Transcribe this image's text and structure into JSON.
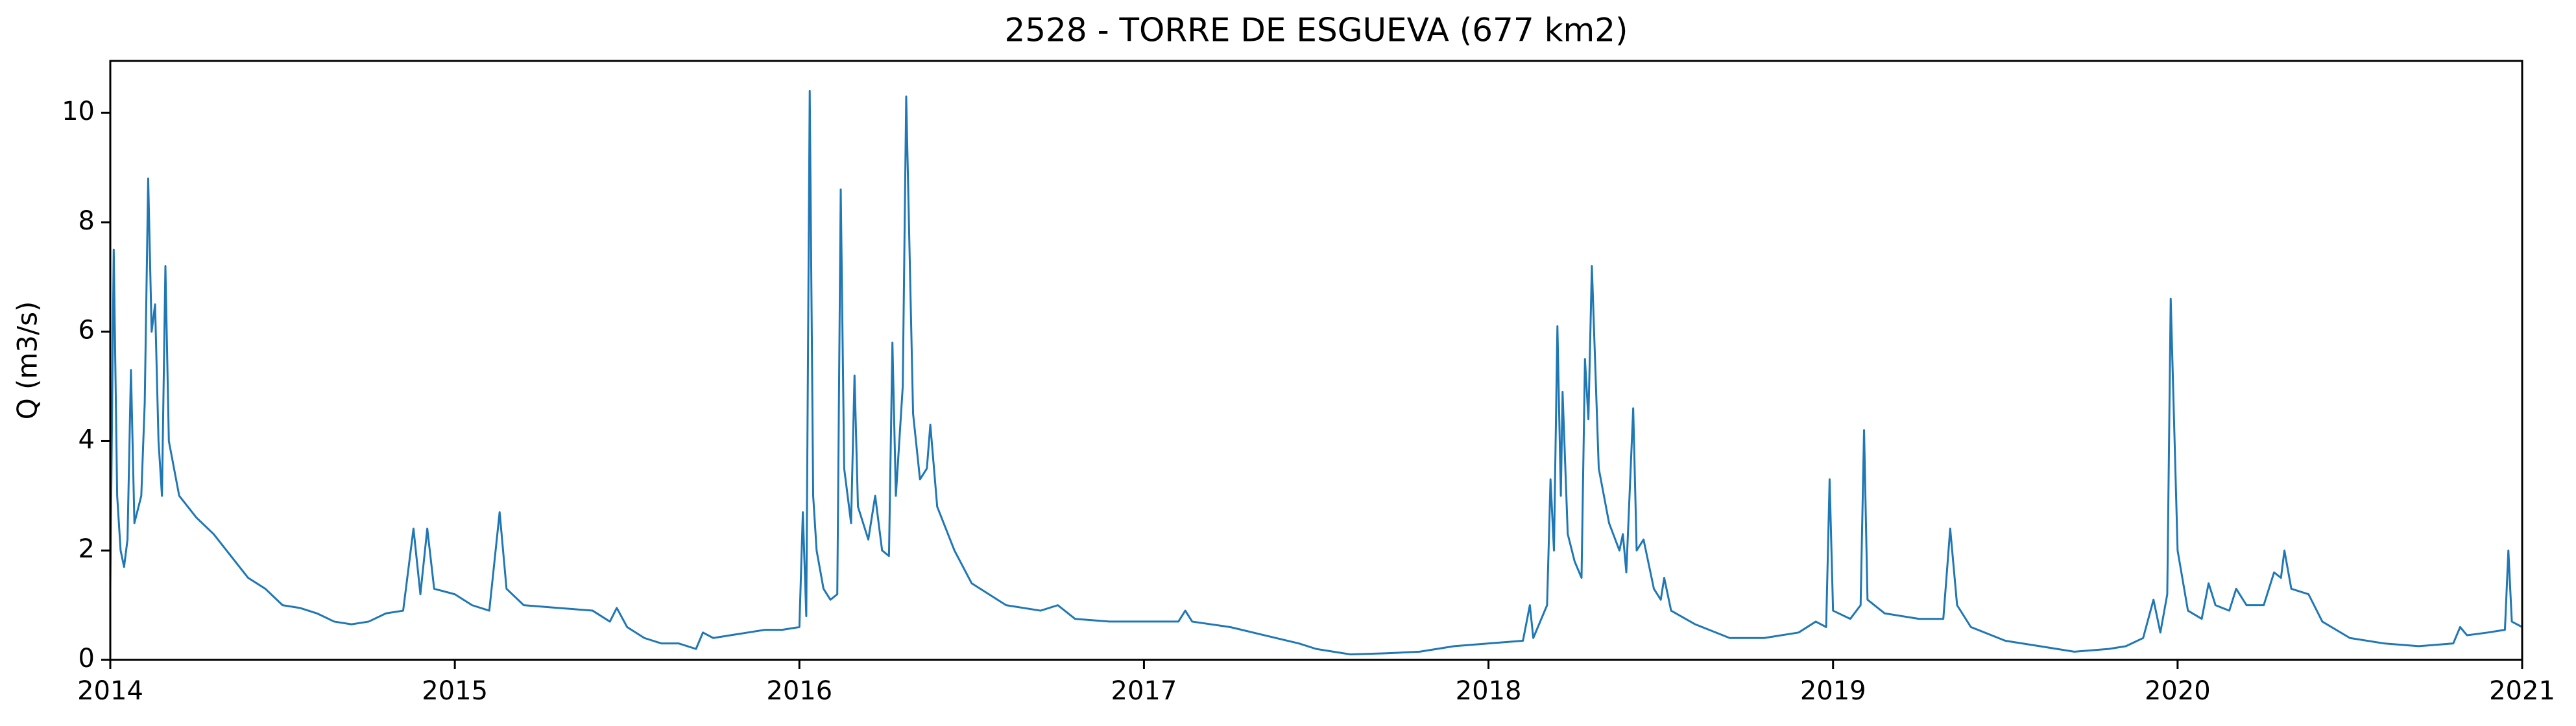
{
  "chart_data": {
    "type": "line",
    "title": "2528 - TORRE DE ESGUEVA (677 km2)",
    "y_label": "Q (m3/s)",
    "x": [
      2014.0,
      2014.01,
      2014.02,
      2014.03,
      2014.04,
      2014.05,
      2014.06,
      2014.07,
      2014.09,
      2014.1,
      2014.11,
      2014.12,
      2014.13,
      2014.14,
      2014.15,
      2014.16,
      2014.17,
      2014.2,
      2014.25,
      2014.3,
      2014.35,
      2014.4,
      2014.45,
      2014.5,
      2014.55,
      2014.6,
      2014.65,
      2014.7,
      2014.75,
      2014.8,
      2014.85,
      2014.88,
      2014.9,
      2014.92,
      2014.94,
      2015.0,
      2015.05,
      2015.1,
      2015.13,
      2015.15,
      2015.2,
      2015.3,
      2015.4,
      2015.45,
      2015.47,
      2015.5,
      2015.55,
      2015.6,
      2015.65,
      2015.7,
      2015.72,
      2015.75,
      2015.8,
      2015.85,
      2015.9,
      2015.95,
      2016.0,
      2016.01,
      2016.02,
      2016.03,
      2016.04,
      2016.05,
      2016.07,
      2016.09,
      2016.11,
      2016.12,
      2016.13,
      2016.15,
      2016.16,
      2016.17,
      2016.2,
      2016.22,
      2016.24,
      2016.26,
      2016.27,
      2016.28,
      2016.3,
      2016.31,
      2016.33,
      2016.35,
      2016.37,
      2016.38,
      2016.4,
      2016.45,
      2016.5,
      2016.55,
      2016.6,
      2016.7,
      2016.75,
      2016.8,
      2016.9,
      2017.0,
      2017.1,
      2017.12,
      2017.14,
      2017.25,
      2017.35,
      2017.45,
      2017.5,
      2017.55,
      2017.6,
      2017.7,
      2017.8,
      2017.9,
      2018.0,
      2018.1,
      2018.12,
      2018.13,
      2018.17,
      2018.18,
      2018.19,
      2018.2,
      2018.21,
      2018.215,
      2018.23,
      2018.25,
      2018.27,
      2018.28,
      2018.29,
      2018.3,
      2018.32,
      2018.35,
      2018.38,
      2018.39,
      2018.4,
      2018.42,
      2018.43,
      2018.45,
      2018.48,
      2018.5,
      2018.51,
      2018.53,
      2018.6,
      2018.7,
      2018.8,
      2018.9,
      2018.95,
      2018.98,
      2018.99,
      2019.0,
      2019.05,
      2019.08,
      2019.09,
      2019.1,
      2019.15,
      2019.25,
      2019.32,
      2019.34,
      2019.36,
      2019.4,
      2019.5,
      2019.6,
      2019.7,
      2019.8,
      2019.85,
      2019.9,
      2019.93,
      2019.95,
      2019.97,
      2019.98,
      2020.0,
      2020.03,
      2020.07,
      2020.09,
      2020.11,
      2020.15,
      2020.17,
      2020.2,
      2020.25,
      2020.28,
      2020.3,
      2020.31,
      2020.33,
      2020.38,
      2020.42,
      2020.5,
      2020.6,
      2020.7,
      2020.8,
      2020.82,
      2020.84,
      2020.9,
      2020.95,
      2020.96,
      2020.97,
      2021.0
    ],
    "series": [
      {
        "color": "#1f77b4",
        "values": [
          1.3,
          7.5,
          3,
          2,
          1.7,
          2.2,
          5.3,
          2.5,
          3,
          4.7,
          8.8,
          6,
          6.5,
          4,
          3,
          7.2,
          4,
          3,
          2.6,
          2.3,
          1.9,
          1.5,
          1.3,
          1.0,
          0.95,
          0.85,
          0.7,
          0.65,
          0.7,
          0.85,
          0.9,
          2.4,
          1.2,
          2.4,
          1.3,
          1.2,
          1.0,
          0.9,
          2.7,
          1.3,
          1.0,
          0.95,
          0.9,
          0.7,
          0.95,
          0.6,
          0.4,
          0.3,
          0.3,
          0.2,
          0.5,
          0.4,
          0.45,
          0.5,
          0.55,
          0.55,
          0.6,
          2.7,
          0.8,
          10.4,
          3,
          2,
          1.3,
          1.1,
          1.2,
          8.6,
          3.5,
          2.5,
          5.2,
          2.8,
          2.2,
          3.0,
          2.0,
          1.9,
          5.8,
          3.0,
          5.0,
          10.3,
          4.5,
          3.3,
          3.5,
          4.3,
          2.8,
          2.0,
          1.4,
          1.2,
          1.0,
          0.9,
          1.0,
          0.75,
          0.7,
          0.7,
          0.7,
          0.9,
          0.7,
          0.6,
          0.45,
          0.3,
          0.2,
          0.15,
          0.1,
          0.12,
          0.15,
          0.25,
          0.3,
          0.35,
          1.0,
          0.4,
          1.0,
          3.3,
          2.0,
          6.1,
          3.0,
          4.9,
          2.3,
          1.8,
          1.5,
          5.5,
          4.4,
          7.2,
          3.5,
          2.5,
          2.0,
          2.3,
          1.6,
          4.6,
          2.0,
          2.2,
          1.3,
          1.1,
          1.5,
          0.9,
          0.65,
          0.4,
          0.4,
          0.5,
          0.7,
          0.6,
          3.3,
          0.9,
          0.75,
          1.0,
          4.2,
          1.1,
          0.85,
          0.75,
          0.75,
          2.4,
          1.0,
          0.6,
          0.35,
          0.25,
          0.15,
          0.2,
          0.25,
          0.4,
          1.1,
          0.5,
          1.2,
          6.6,
          2.0,
          0.9,
          0.75,
          1.4,
          1.0,
          0.9,
          1.3,
          1.0,
          1.0,
          1.6,
          1.5,
          2.0,
          1.3,
          1.2,
          0.7,
          0.4,
          0.3,
          0.25,
          0.3,
          0.6,
          0.45,
          0.5,
          0.55,
          2.0,
          0.7,
          0.6
        ]
      }
    ],
    "xlim": [
      2014,
      2021
    ],
    "xticks": [
      2014,
      2015,
      2016,
      2017,
      2018,
      2019,
      2020,
      2021
    ],
    "ylim": [
      0,
      10.95
    ],
    "yticks": [
      0,
      2,
      4,
      6,
      8,
      10
    ],
    "grid": false
  }
}
